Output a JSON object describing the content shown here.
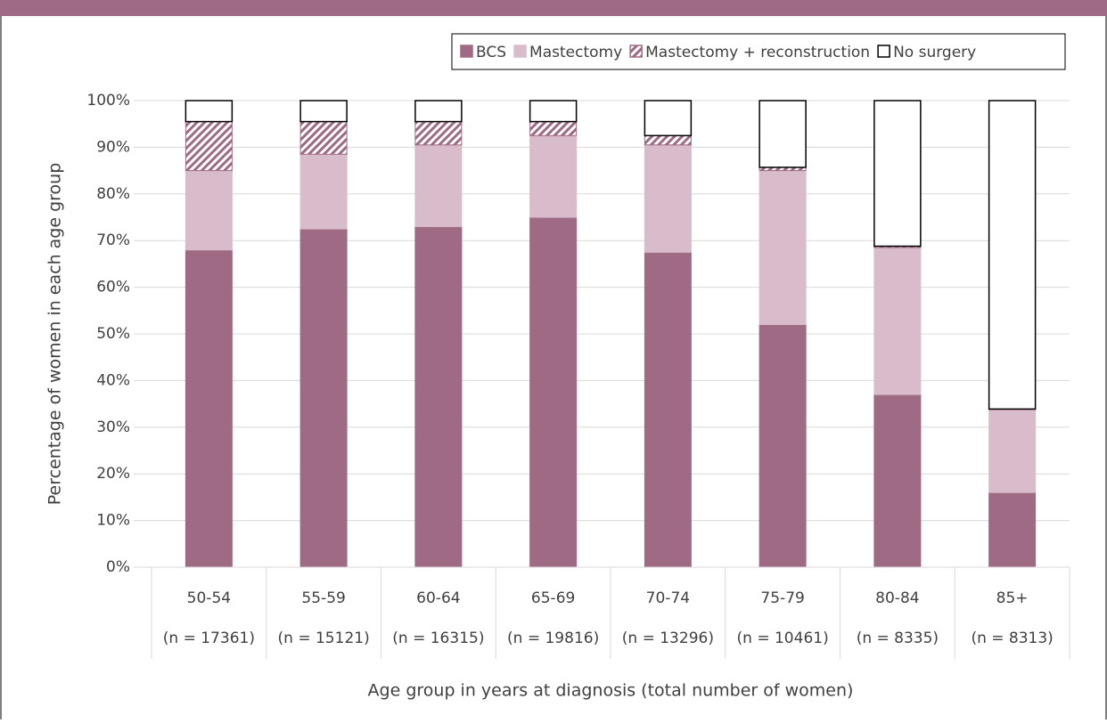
{
  "chart_data": {
    "type": "stacked-bar",
    "y_label": "Percentage of women in each age group",
    "x_label": "Age group in years at diagnosis (total number of women)",
    "categories": [
      "50-54",
      "55-59",
      "60-64",
      "65-69",
      "70-74",
      "75-79",
      "80-84",
      "85+"
    ],
    "category_sublabels": [
      "(n = 17361)",
      "(n = 15121)",
      "(n = 16315)",
      "(n = 19816)",
      "(n = 13296)",
      "(n = 10461)",
      "(n = 8335)",
      "(n = 8313)"
    ],
    "series": [
      {
        "name": "BCS",
        "color": "#9e6a84",
        "values": [
          68,
          72.5,
          73,
          75,
          67.5,
          52,
          37,
          16
        ]
      },
      {
        "name": "Mastectomy",
        "color": "#d8bccb",
        "values": [
          17,
          16,
          17.5,
          17.5,
          23,
          33,
          31.5,
          17.8
        ]
      },
      {
        "name": "Mastectomy + reconstruction",
        "color": "#9e6a84",
        "pattern": "hatch",
        "values": [
          10.5,
          7,
          5,
          3,
          2,
          0.7,
          0.3,
          0.1
        ]
      },
      {
        "name": "No surgery",
        "color": "#ffffff",
        "outline": "#000000",
        "values": [
          4.5,
          4.5,
          4.5,
          4.5,
          7.5,
          14.3,
          31.2,
          66.1
        ]
      }
    ],
    "ylim": [
      0,
      100
    ],
    "yticks": [
      {
        "value": 0,
        "label": "0%"
      },
      {
        "value": 10,
        "label": "10%"
      },
      {
        "value": 20,
        "label": "20%"
      },
      {
        "value": 30,
        "label": "30%"
      },
      {
        "value": 40,
        "label": "40%"
      },
      {
        "value": 50,
        "label": "50%"
      },
      {
        "value": 60,
        "label": "60%"
      },
      {
        "value": 70,
        "label": "70%"
      },
      {
        "value": 80,
        "label": "80%"
      },
      {
        "value": 90,
        "label": "90%"
      },
      {
        "value": 100,
        "label": "100%"
      }
    ],
    "grid": true,
    "legend": "top-right"
  }
}
